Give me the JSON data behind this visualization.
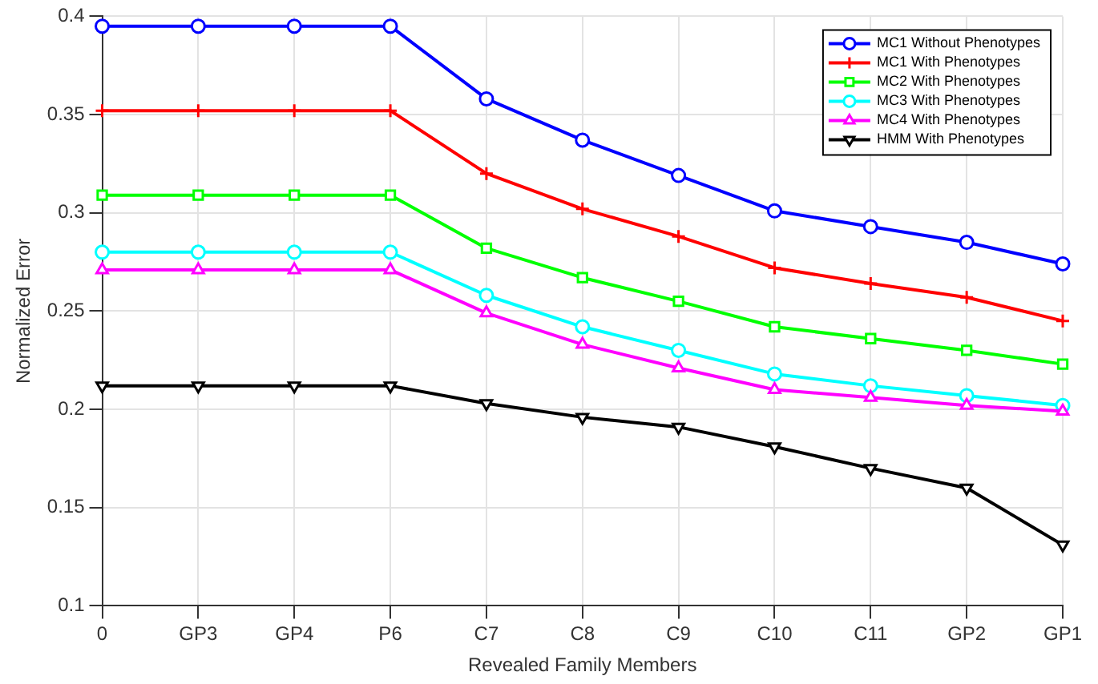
{
  "chart_data": {
    "type": "line",
    "xlabel": "Revealed Family Members",
    "ylabel": "Normalized Error",
    "categories": [
      "0",
      "GP3",
      "GP4",
      "P6",
      "C7",
      "C8",
      "C9",
      "C10",
      "C11",
      "GP2",
      "GP1"
    ],
    "series": [
      {
        "name": "MC1 Without Phenotypes",
        "color": "#0000ff",
        "marker": "circle",
        "values": [
          0.395,
          0.395,
          0.395,
          0.395,
          0.358,
          0.337,
          0.319,
          0.301,
          0.293,
          0.285,
          0.274
        ]
      },
      {
        "name": "MC1 With Phenotypes",
        "color": "#ff0000",
        "marker": "cross",
        "values": [
          0.352,
          0.352,
          0.352,
          0.352,
          0.32,
          0.302,
          0.288,
          0.272,
          0.264,
          0.257,
          0.245
        ]
      },
      {
        "name": "MC2 With Phenotypes",
        "color": "#00ff00",
        "marker": "square",
        "values": [
          0.309,
          0.309,
          0.309,
          0.309,
          0.282,
          0.267,
          0.255,
          0.242,
          0.236,
          0.23,
          0.223
        ]
      },
      {
        "name": "MC3 With Phenotypes",
        "color": "#00ffff",
        "marker": "circle",
        "values": [
          0.28,
          0.28,
          0.28,
          0.28,
          0.258,
          0.242,
          0.23,
          0.218,
          0.212,
          0.207,
          0.202
        ]
      },
      {
        "name": "MC4 With Phenotypes",
        "color": "#ff00ff",
        "marker": "triangle",
        "values": [
          0.271,
          0.271,
          0.271,
          0.271,
          0.249,
          0.233,
          0.221,
          0.21,
          0.206,
          0.202,
          0.199
        ]
      },
      {
        "name": "HMM With Phenotypes",
        "color": "#000000",
        "marker": "triangle-down",
        "values": [
          0.212,
          0.212,
          0.212,
          0.212,
          0.203,
          0.196,
          0.191,
          0.181,
          0.17,
          0.16,
          0.131
        ]
      }
    ],
    "ylim": [
      0.1,
      0.4
    ],
    "yticks": [
      0.1,
      0.15,
      0.2,
      0.25,
      0.3,
      0.35,
      0.4
    ],
    "grid": true,
    "legend": "top right",
    "line_style": "solid"
  }
}
